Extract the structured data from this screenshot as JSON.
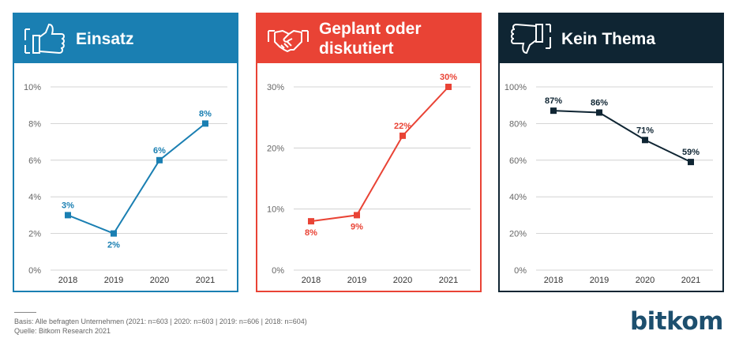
{
  "panels": [
    {
      "title": "Einsatz",
      "color": "#1a7fb2",
      "text_color": "#1a7fb2",
      "icon": "thumbs-up-icon"
    },
    {
      "title": "Geplant oder diskutiert",
      "color": "#e94335",
      "text_color": "#e94335",
      "icon": "handshake-icon"
    },
    {
      "title": "Kein Thema",
      "color": "#0f2533",
      "text_color": "#0f2533",
      "icon": "thumbs-down-icon"
    }
  ],
  "chart_data": [
    {
      "type": "line",
      "title": "Einsatz",
      "categories": [
        "2018",
        "2019",
        "2020",
        "2021"
      ],
      "values": [
        3,
        2,
        6,
        8
      ],
      "labels": [
        "3%",
        "2%",
        "6%",
        "8%"
      ],
      "yticks": [
        0,
        2,
        4,
        6,
        8,
        10
      ],
      "ytick_labels": [
        "0%",
        "2%",
        "4%",
        "6%",
        "8%",
        "10%"
      ],
      "ylim": [
        0,
        10
      ],
      "label_pos": [
        "above",
        "below",
        "above",
        "above"
      ]
    },
    {
      "type": "line",
      "title": "Geplant oder diskutiert",
      "categories": [
        "2018",
        "2019",
        "2020",
        "2021"
      ],
      "values": [
        8,
        9,
        22,
        30
      ],
      "labels": [
        "8%",
        "9%",
        "22%",
        "30%"
      ],
      "yticks": [
        0,
        10,
        20,
        30
      ],
      "ytick_labels": [
        "0%",
        "10%",
        "20%",
        "30%"
      ],
      "ylim": [
        0,
        30
      ],
      "label_pos": [
        "below",
        "below",
        "above",
        "above"
      ]
    },
    {
      "type": "line",
      "title": "Kein Thema",
      "categories": [
        "2018",
        "2019",
        "2020",
        "2021"
      ],
      "values": [
        87,
        86,
        71,
        59
      ],
      "labels": [
        "87%",
        "86%",
        "71%",
        "59%"
      ],
      "yticks": [
        0,
        20,
        40,
        60,
        80,
        100
      ],
      "ytick_labels": [
        "0%",
        "20%",
        "40%",
        "60%",
        "80%",
        "100%"
      ],
      "ylim": [
        0,
        100
      ],
      "label_pos": [
        "above",
        "above",
        "above",
        "above"
      ]
    }
  ],
  "footnote": {
    "basis": "Basis: Alle befragten Unternehmen (2021: n=603 | 2020: n=603 | 2019: n=606 | 2018: n=604)",
    "source": "Quelle: Bitkom Research 2021"
  },
  "brand": "bitkom"
}
